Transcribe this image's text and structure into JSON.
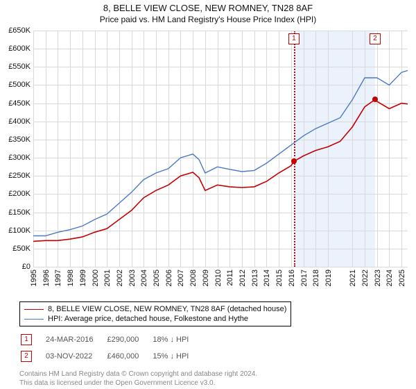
{
  "title": "8, BELLE VIEW CLOSE, NEW ROMNEY, TN28 8AF",
  "subtitle": "Price paid vs. HM Land Registry's House Price Index (HPI)",
  "axes": {
    "xlim": [
      1995,
      2025.5
    ],
    "ylim": [
      0,
      650000
    ],
    "ytick_step": 50000,
    "ytick_prefix": "£",
    "ytick_suffix": "K",
    "ytick_divide": 1000,
    "xticks": [
      1995,
      1996,
      1997,
      1998,
      1999,
      2000,
      2001,
      2002,
      2003,
      2004,
      2005,
      2006,
      2007,
      2008,
      2009,
      2010,
      2011,
      2012,
      2013,
      2014,
      2015,
      2016,
      2017,
      2018,
      2019,
      2021,
      2022,
      2023,
      2024,
      2025
    ],
    "grid_color": "#d9d9d9",
    "background_color": "#ffffff",
    "label_fontsize": 11
  },
  "highlight_band": {
    "x_start": 2016.23,
    "x_end": 2022.84,
    "fill_color": "#ecf2fb",
    "left_border_color": "#c40000"
  },
  "series": [
    {
      "name": "8, BELLE VIEW CLOSE, NEW ROMNEY, TN28 8AF (detached house)",
      "color": "#c40000",
      "line_width": 1.6,
      "y_at_year": {
        "1995": 70000,
        "1996": 72000,
        "1997": 72000,
        "1998": 76000,
        "1999": 82000,
        "2000": 95000,
        "2001": 105000,
        "2002": 130000,
        "2003": 155000,
        "2004": 190000,
        "2005": 210000,
        "2006": 225000,
        "2007": 250000,
        "2008": 260000,
        "2008.5": 245000,
        "2009": 210000,
        "2010": 225000,
        "2011": 220000,
        "2012": 218000,
        "2013": 220000,
        "2014": 235000,
        "2015": 258000,
        "2016": 278000,
        "2016.23": 290000,
        "2017": 305000,
        "2018": 320000,
        "2019": 330000,
        "2020": 345000,
        "2021": 385000,
        "2022": 440000,
        "2022.84": 460000,
        "2023": 455000,
        "2024": 435000,
        "2025": 450000,
        "2025.5": 448000
      }
    },
    {
      "name": "HPI: Average price, detached house, Folkestone and Hythe",
      "color": "#4a79c7",
      "line_width": 1.4,
      "y_at_year": {
        "1995": 85000,
        "1996": 85000,
        "1997": 95000,
        "1998": 102000,
        "1999": 112000,
        "2000": 130000,
        "2001": 145000,
        "2002": 175000,
        "2003": 205000,
        "2004": 240000,
        "2005": 258000,
        "2006": 270000,
        "2007": 300000,
        "2008": 310000,
        "2008.5": 295000,
        "2009": 258000,
        "2010": 275000,
        "2011": 268000,
        "2012": 262000,
        "2013": 265000,
        "2014": 285000,
        "2015": 310000,
        "2016": 335000,
        "2017": 360000,
        "2018": 380000,
        "2019": 395000,
        "2020": 410000,
        "2021": 460000,
        "2022": 520000,
        "2023": 520000,
        "2024": 500000,
        "2025": 535000,
        "2025.5": 540000
      }
    }
  ],
  "markers": [
    {
      "n": "1",
      "x": 2016.23,
      "date": "24-MAR-2016",
      "price": "£290,000",
      "delta": "18% ↓ HPI",
      "series_index": 0,
      "dot_y": 290000
    },
    {
      "n": "2",
      "x": 2022.84,
      "date": "03-NOV-2022",
      "price": "£460,000",
      "delta": "15% ↓ HPI",
      "series_index": 0,
      "dot_y": 460000
    }
  ],
  "marker_style": {
    "border_color": "#c40000",
    "dot_color": "#c40000"
  },
  "legend_border_color": "#000000",
  "licence": {
    "line1": "Contains HM Land Registry data © Crown copyright and database right 2024.",
    "line2": "This data is licensed under the Open Government Licence v3.0."
  }
}
